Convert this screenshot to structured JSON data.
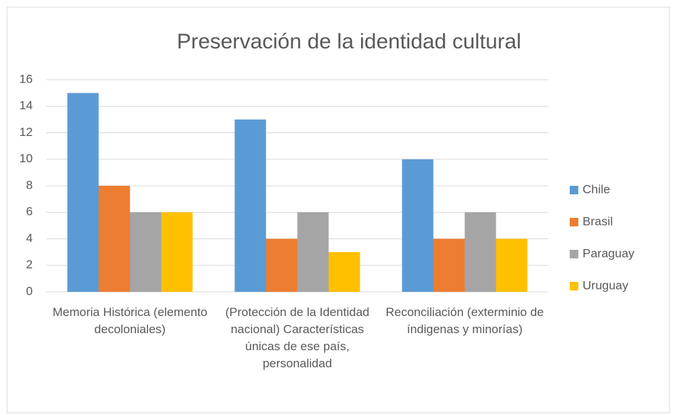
{
  "chart_data": {
    "type": "bar",
    "title": "Preservación de la identidad cultural",
    "categories": [
      "Memoria Histórica (elemento decoloniales)",
      "(Protección de la Identidad nacional) Características únicas de ese país, personalidad",
      "Reconciliación (exterminio de índigenas y minorías)"
    ],
    "series": [
      {
        "name": "Chile",
        "color": "#5b9bd5",
        "values": [
          15,
          13,
          10
        ]
      },
      {
        "name": "Brasil",
        "color": "#ed7d31",
        "values": [
          8,
          4,
          4
        ]
      },
      {
        "name": "Paraguay",
        "color": "#a5a5a5",
        "values": [
          6,
          6,
          6
        ]
      },
      {
        "name": "Uruguay",
        "color": "#ffc000",
        "values": [
          6,
          3,
          4
        ]
      }
    ],
    "ylim": [
      0,
      16
    ],
    "yticks": [
      0,
      2,
      4,
      6,
      8,
      10,
      12,
      14,
      16
    ],
    "grid": true,
    "legend": "right"
  }
}
